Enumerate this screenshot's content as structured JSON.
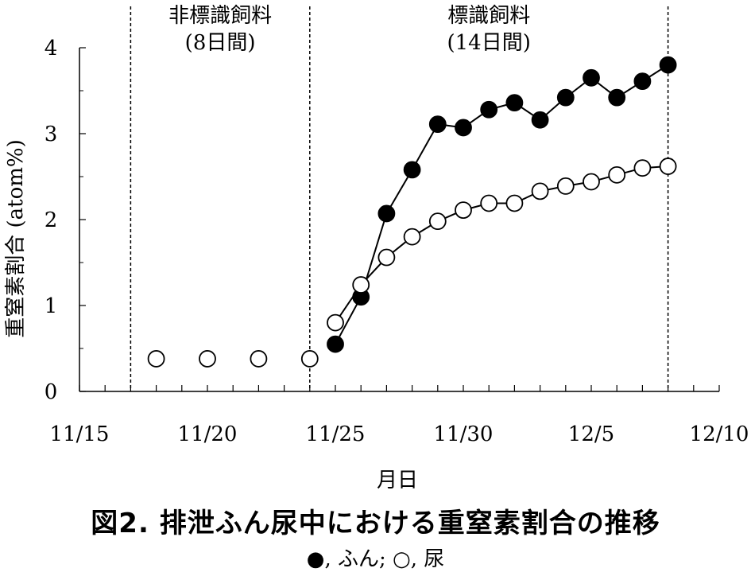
{
  "figure": {
    "caption": "図2. 排泄ふん尿中における重窒素割合の推移",
    "legend_text": "●, ふん; ○, 尿"
  },
  "chart_data": {
    "type": "line",
    "xlabel": "月日",
    "ylabel": "重窒素割合 (atom%)",
    "xlim": [
      "11/15",
      "12/10"
    ],
    "ylim": [
      0,
      4
    ],
    "x_ticks": [
      "11/15",
      "11/20",
      "11/25",
      "11/30",
      "12/5",
      "12/10"
    ],
    "y_ticks": [
      "0",
      "1",
      "2",
      "3",
      "4"
    ],
    "periods": [
      {
        "label_line1": "非標識飼料",
        "label_line2": "(8日間)",
        "start": "11/17",
        "end": "11/24"
      },
      {
        "label_line1": "標識飼料",
        "label_line2": "(14日間)",
        "start": "11/24",
        "end": "12/8"
      }
    ],
    "series": [
      {
        "name": "ふん",
        "marker": "filled-circle",
        "connected": true,
        "x": [
          "11/25",
          "11/26",
          "11/27",
          "11/28",
          "11/29",
          "11/30",
          "12/1",
          "12/2",
          "12/3",
          "12/4",
          "12/5",
          "12/6",
          "12/7",
          "12/8"
        ],
        "values": [
          0.55,
          1.1,
          2.07,
          2.58,
          3.11,
          3.07,
          3.28,
          3.36,
          3.16,
          3.42,
          3.65,
          3.42,
          3.61,
          3.8
        ]
      },
      {
        "name": "尿",
        "marker": "open-circle",
        "connected_from_index": 4,
        "x": [
          "11/18",
          "11/20",
          "11/22",
          "11/24",
          "11/25",
          "11/26",
          "11/27",
          "11/28",
          "11/29",
          "11/30",
          "12/1",
          "12/2",
          "12/3",
          "12/4",
          "12/5",
          "12/6",
          "12/7",
          "12/8"
        ],
        "values": [
          0.38,
          0.38,
          0.38,
          0.38,
          0.8,
          1.24,
          1.56,
          1.8,
          1.98,
          2.11,
          2.19,
          2.19,
          2.33,
          2.39,
          2.44,
          2.52,
          2.6,
          2.62
        ]
      }
    ],
    "colors": {
      "line": "#000000",
      "open_fill": "#ffffff",
      "filled": "#000000"
    }
  }
}
